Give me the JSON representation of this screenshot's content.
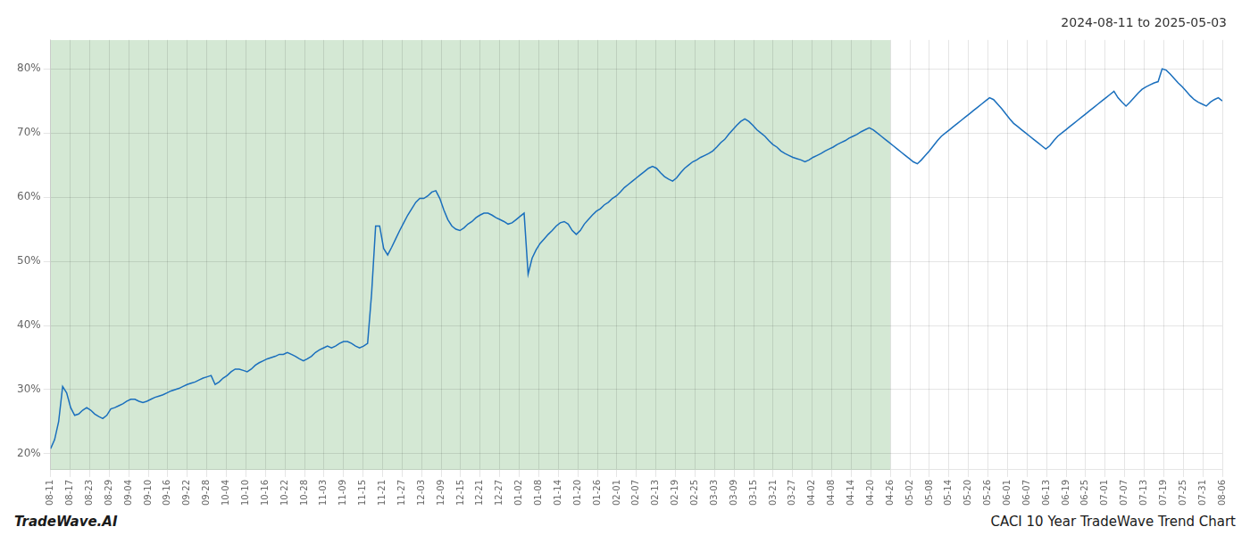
{
  "chart_data": {
    "type": "line",
    "title": "2024-08-11 to 2025-05-03",
    "annotations": [
      "TradeWave.AI",
      "CACI 10 Year TradeWave Trend Chart"
    ],
    "color": "#1a6fbd",
    "shaded_region": {
      "x": [
        0,
        209.2666666667
      ],
      "color": "#d4e8d4"
    },
    "grid": true,
    "xlim": [
      0,
      292
    ],
    "xticks": [
      {
        "value": 0,
        "label": "08-11"
      },
      {
        "value": 4.8666666667,
        "label": "08-17"
      },
      {
        "value": 9.7333333333,
        "label": "08-23"
      },
      {
        "value": 14.6,
        "label": "08-29"
      },
      {
        "value": 19.4666666667,
        "label": "09-04"
      },
      {
        "value": 24.3333333333,
        "label": "09-10"
      },
      {
        "value": 29.2,
        "label": "09-16"
      },
      {
        "value": 34.0666666667,
        "label": "09-22"
      },
      {
        "value": 38.9333333333,
        "label": "09-28"
      },
      {
        "value": 43.8,
        "label": "10-04"
      },
      {
        "value": 48.6666666667,
        "label": "10-10"
      },
      {
        "value": 53.5333333333,
        "label": "10-16"
      },
      {
        "value": 58.4,
        "label": "10-22"
      },
      {
        "value": 63.2666666667,
        "label": "10-28"
      },
      {
        "value": 68.1333333333,
        "label": "11-03"
      },
      {
        "value": 73,
        "label": "11-09"
      },
      {
        "value": 77.8666666667,
        "label": "11-15"
      },
      {
        "value": 82.7333333333,
        "label": "11-21"
      },
      {
        "value": 87.6,
        "label": "11-27"
      },
      {
        "value": 92.4666666667,
        "label": "12-03"
      },
      {
        "value": 97.3333333333,
        "label": "12-09"
      },
      {
        "value": 102.2,
        "label": "12-15"
      },
      {
        "value": 107.0666666667,
        "label": "12-21"
      },
      {
        "value": 111.9333333333,
        "label": "12-27"
      },
      {
        "value": 116.8,
        "label": "01-02"
      },
      {
        "value": 121.6666666667,
        "label": "01-08"
      },
      {
        "value": 126.5333333333,
        "label": "01-14"
      },
      {
        "value": 131.4,
        "label": "01-20"
      },
      {
        "value": 136.2666666667,
        "label": "01-26"
      },
      {
        "value": 141.1333333333,
        "label": "02-01"
      },
      {
        "value": 146,
        "label": "02-07"
      },
      {
        "value": 150.8666666667,
        "label": "02-13"
      },
      {
        "value": 155.7333333333,
        "label": "02-19"
      },
      {
        "value": 160.6,
        "label": "02-25"
      },
      {
        "value": 165.4666666667,
        "label": "03-03"
      },
      {
        "value": 170.3333333333,
        "label": "03-09"
      },
      {
        "value": 175.2,
        "label": "03-15"
      },
      {
        "value": 180.0666666667,
        "label": "03-21"
      },
      {
        "value": 184.9333333333,
        "label": "03-27"
      },
      {
        "value": 189.8,
        "label": "04-02"
      },
      {
        "value": 194.6666666667,
        "label": "04-08"
      },
      {
        "value": 199.5333333333,
        "label": "04-14"
      },
      {
        "value": 204.4,
        "label": "04-20"
      },
      {
        "value": 209.2666666667,
        "label": "04-26"
      },
      {
        "value": 214.1333333333,
        "label": "05-02"
      },
      {
        "value": 219,
        "label": "05-08"
      },
      {
        "value": 223.8666666667,
        "label": "05-14"
      },
      {
        "value": 228.7333333333,
        "label": "05-20"
      },
      {
        "value": 233.6,
        "label": "05-26"
      },
      {
        "value": 238.4666666667,
        "label": "06-01"
      },
      {
        "value": 243.3333333333,
        "label": "06-07"
      },
      {
        "value": 248.2,
        "label": "06-13"
      },
      {
        "value": 253.0666666667,
        "label": "06-19"
      },
      {
        "value": 257.9333333333,
        "label": "06-25"
      },
      {
        "value": 262.8,
        "label": "07-01"
      },
      {
        "value": 267.6666666667,
        "label": "07-07"
      },
      {
        "value": 272.5333333333,
        "label": "07-13"
      },
      {
        "value": 277.4,
        "label": "07-19"
      },
      {
        "value": 282.2666666667,
        "label": "07-25"
      },
      {
        "value": 287.1333333333,
        "label": "07-31"
      },
      {
        "value": 292,
        "label": "08-06"
      }
    ],
    "ylim": [
      0.175,
      0.845
    ],
    "yticks": [
      {
        "value": 0.2,
        "label": "20%"
      },
      {
        "value": 0.3,
        "label": "30%"
      },
      {
        "value": 0.4,
        "label": "40%"
      },
      {
        "value": 0.5,
        "label": "50%"
      },
      {
        "value": 0.6,
        "label": "60%"
      },
      {
        "value": 0.7,
        "label": "70%"
      },
      {
        "value": 0.8,
        "label": "80%"
      }
    ],
    "x": [
      0,
      1,
      2,
      3,
      4,
      5,
      6,
      7,
      8,
      9,
      10,
      11,
      12,
      13,
      14,
      15,
      16,
      17,
      18,
      19,
      20,
      21,
      22,
      23,
      24,
      25,
      26,
      27,
      28,
      29,
      30,
      31,
      32,
      33,
      34,
      35,
      36,
      37,
      38,
      39,
      40,
      41,
      42,
      43,
      44,
      45,
      46,
      47,
      48,
      49,
      50,
      51,
      52,
      53,
      54,
      55,
      56,
      57,
      58,
      59,
      60,
      61,
      62,
      63,
      64,
      65,
      66,
      67,
      68,
      69,
      70,
      71,
      72,
      73,
      74,
      75,
      76,
      77,
      78,
      79,
      80,
      81,
      82,
      83,
      84,
      85,
      86,
      87,
      88,
      89,
      90,
      91,
      92,
      93,
      94,
      95,
      96,
      97,
      98,
      99,
      100,
      101,
      102,
      103,
      104,
      105,
      106,
      107,
      108,
      109,
      110,
      111,
      112,
      113,
      114,
      115,
      116,
      117,
      118,
      119,
      120,
      121,
      122,
      123,
      124,
      125,
      126,
      127,
      128,
      129,
      130,
      131,
      132,
      133,
      134,
      135,
      136,
      137,
      138,
      139,
      140,
      141,
      142,
      143,
      144,
      145,
      146,
      147,
      148,
      149,
      150,
      151,
      152,
      153,
      154,
      155,
      156,
      157,
      158,
      159,
      160,
      161,
      162,
      163,
      164,
      165,
      166,
      167,
      168,
      169,
      170,
      171,
      172,
      173,
      174,
      175,
      176,
      177,
      178,
      179,
      180,
      181,
      182,
      183,
      184,
      185,
      186,
      187,
      188,
      189,
      190,
      191,
      192,
      193,
      194,
      195,
      196,
      197,
      198,
      199,
      200,
      201,
      202,
      203,
      204,
      205,
      206,
      207,
      208,
      209,
      210,
      211,
      212,
      213,
      214,
      215,
      216,
      217,
      218,
      219,
      220,
      221,
      222,
      223,
      224,
      225,
      226,
      227,
      228,
      229,
      230,
      231,
      232,
      233,
      234,
      235,
      236,
      237,
      238,
      239,
      240,
      241,
      242,
      243,
      244,
      245,
      246,
      247,
      248,
      249,
      250,
      251,
      252,
      253,
      254,
      255,
      256,
      257,
      258,
      259,
      260,
      261,
      262,
      263,
      264,
      265,
      266,
      267,
      268,
      269,
      270,
      271,
      272,
      273,
      274,
      275,
      276,
      277,
      278,
      279,
      280,
      281,
      282,
      283,
      284,
      285,
      286,
      287,
      288,
      289,
      290,
      291,
      292
    ],
    "values": [
      0.208,
      0.222,
      0.25,
      0.305,
      0.295,
      0.272,
      0.26,
      0.262,
      0.268,
      0.272,
      0.268,
      0.262,
      0.258,
      0.255,
      0.26,
      0.27,
      0.272,
      0.275,
      0.278,
      0.282,
      0.285,
      0.285,
      0.282,
      0.28,
      0.282,
      0.285,
      0.288,
      0.29,
      0.292,
      0.295,
      0.298,
      0.3,
      0.302,
      0.305,
      0.308,
      0.31,
      0.312,
      0.315,
      0.318,
      0.32,
      0.322,
      0.308,
      0.312,
      0.318,
      0.322,
      0.328,
      0.332,
      0.332,
      0.33,
      0.328,
      0.332,
      0.338,
      0.342,
      0.345,
      0.348,
      0.35,
      0.352,
      0.355,
      0.355,
      0.358,
      0.355,
      0.352,
      0.348,
      0.345,
      0.348,
      0.352,
      0.358,
      0.362,
      0.365,
      0.368,
      0.365,
      0.368,
      0.372,
      0.375,
      0.375,
      0.372,
      0.368,
      0.365,
      0.368,
      0.372,
      0.45,
      0.555,
      0.555,
      0.52,
      0.51,
      0.522,
      0.535,
      0.548,
      0.56,
      0.572,
      0.582,
      0.592,
      0.598,
      0.598,
      0.602,
      0.608,
      0.61,
      0.598,
      0.58,
      0.565,
      0.555,
      0.55,
      0.548,
      0.552,
      0.558,
      0.562,
      0.568,
      0.572,
      0.575,
      0.575,
      0.572,
      0.568,
      0.565,
      0.562,
      0.558,
      0.56,
      0.565,
      0.57,
      0.575,
      0.48,
      0.505,
      0.518,
      0.528,
      0.535,
      0.542,
      0.548,
      0.555,
      0.56,
      0.562,
      0.558,
      0.548,
      0.542,
      0.548,
      0.558,
      0.565,
      0.572,
      0.578,
      0.582,
      0.588,
      0.592,
      0.598,
      0.602,
      0.608,
      0.615,
      0.62,
      0.625,
      0.63,
      0.635,
      0.64,
      0.645,
      0.648,
      0.645,
      0.638,
      0.632,
      0.628,
      0.625,
      0.63,
      0.638,
      0.645,
      0.65,
      0.655,
      0.658,
      0.662,
      0.665,
      0.668,
      0.672,
      0.678,
      0.685,
      0.69,
      0.698,
      0.705,
      0.712,
      0.718,
      0.722,
      0.718,
      0.712,
      0.705,
      0.7,
      0.695,
      0.688,
      0.682,
      0.678,
      0.672,
      0.668,
      0.665,
      0.662,
      0.66,
      0.658,
      0.655,
      0.658,
      0.662,
      0.665,
      0.668,
      0.672,
      0.675,
      0.678,
      0.682,
      0.685,
      0.688,
      0.692,
      0.695,
      0.698,
      0.702,
      0.705,
      0.708,
      0.705,
      0.7,
      0.695,
      0.69,
      0.685,
      0.68,
      0.675,
      0.67,
      0.665,
      0.66,
      0.655,
      0.652,
      0.658,
      0.665,
      0.672,
      0.68,
      0.688,
      0.695,
      0.7,
      0.705,
      0.71,
      0.715,
      0.72,
      0.725,
      0.73,
      0.735,
      0.74,
      0.745,
      0.75,
      0.755,
      0.752,
      0.745,
      0.738,
      0.73,
      0.722,
      0.715,
      0.71,
      0.705,
      0.7,
      0.695,
      0.69,
      0.685,
      0.68,
      0.675,
      0.68,
      0.688,
      0.695,
      0.7,
      0.705,
      0.71,
      0.715,
      0.72,
      0.725,
      0.73,
      0.735,
      0.74,
      0.745,
      0.75,
      0.755,
      0.76,
      0.765,
      0.755,
      0.748,
      0.742,
      0.748,
      0.755,
      0.762,
      0.768,
      0.772,
      0.775,
      0.778,
      0.78,
      0.8,
      0.798,
      0.792,
      0.785,
      0.778,
      0.772,
      0.765,
      0.758,
      0.752,
      0.748,
      0.745,
      0.742,
      0.748,
      0.752,
      0.755,
      0.75
    ]
  }
}
